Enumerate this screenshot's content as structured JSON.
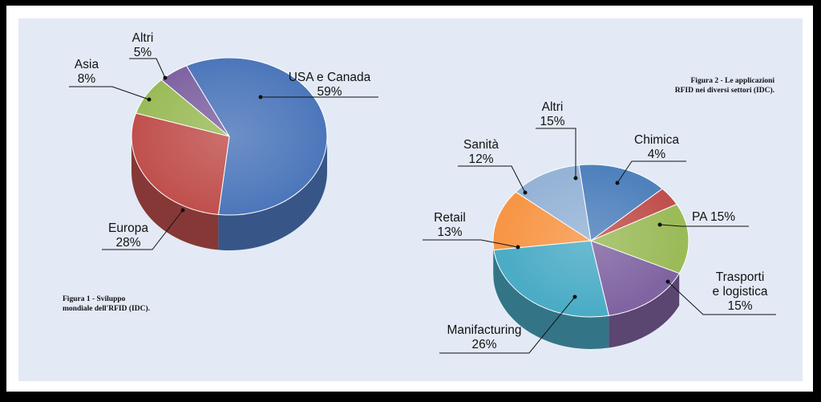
{
  "colors": {
    "usa": "#4d77bb",
    "europa": "#c0504d",
    "asia": "#9bbb59",
    "altri1": "#8064a2",
    "altri2": "#4f81bd",
    "chimica": "#c0504d",
    "pa": "#9bbb59",
    "trasporti": "#8064a2",
    "manufacturing": "#4bacc6",
    "retail": "#f79646",
    "sanita": "#95b3d7"
  },
  "chart_data": [
    {
      "type": "pie",
      "caption": [
        "Figura 1 - Sviluppo",
        "mondiale dell'RFID (IDC)."
      ],
      "slices": [
        {
          "id": "usa",
          "label_lines": [
            "USA e Canada",
            "59%"
          ],
          "value": 59
        },
        {
          "id": "europa",
          "label_lines": [
            "Europa",
            "28%"
          ],
          "value": 28
        },
        {
          "id": "asia",
          "label_lines": [
            "Asia",
            "8%"
          ],
          "value": 8
        },
        {
          "id": "altri",
          "label_lines": [
            "Altri",
            "5%"
          ],
          "value": 5
        }
      ]
    },
    {
      "type": "pie",
      "caption": [
        "Figura 2 - Le applicazioni",
        "RFID nei diversi settori (IDC)."
      ],
      "slices": [
        {
          "id": "altri",
          "label_lines": [
            "Altri",
            "15%"
          ],
          "value": 15
        },
        {
          "id": "chimica",
          "label_lines": [
            "Chimica",
            "4%"
          ],
          "value": 4
        },
        {
          "id": "pa",
          "label_lines": [
            "PA 15%"
          ],
          "value": 15
        },
        {
          "id": "trasporti",
          "label_lines": [
            "Trasporti",
            "e logistica",
            "15%"
          ],
          "value": 15
        },
        {
          "id": "manufacturing",
          "label_lines": [
            "Manifacturing",
            "26%"
          ],
          "value": 26
        },
        {
          "id": "retail",
          "label_lines": [
            "Retail",
            "13%"
          ],
          "value": 13
        },
        {
          "id": "sanita",
          "label_lines": [
            "Sanità",
            "12%"
          ],
          "value": 12
        }
      ]
    }
  ]
}
